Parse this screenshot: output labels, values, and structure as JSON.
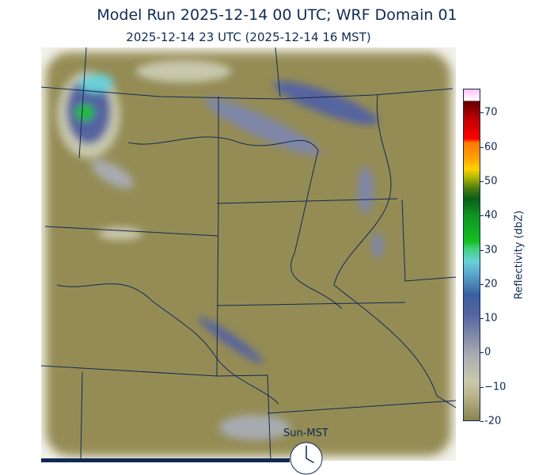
{
  "title": "Model Run 2025-12-14 00 UTC; WRF Domain 01",
  "subtitle": "2025-12-14 23 UTC  (2025-12-14 16 MST)",
  "colorbar": {
    "label": "Reflectivity (dbZ)",
    "range": [
      -20,
      77
    ],
    "ticks": [
      "-20",
      "−10",
      "0",
      "10",
      "20",
      "30",
      "40",
      "50",
      "60",
      "70"
    ],
    "tick_values": [
      -20,
      -10,
      0,
      10,
      20,
      30,
      40,
      50,
      60,
      70
    ]
  },
  "colors": {
    "land": "#958c55",
    "text": "#0f2a55",
    "borders": "#0f2a55"
  },
  "forecast_progress": 0.6,
  "clock": {
    "label": "Sun-MST",
    "hour": 16,
    "minute": 0
  }
}
